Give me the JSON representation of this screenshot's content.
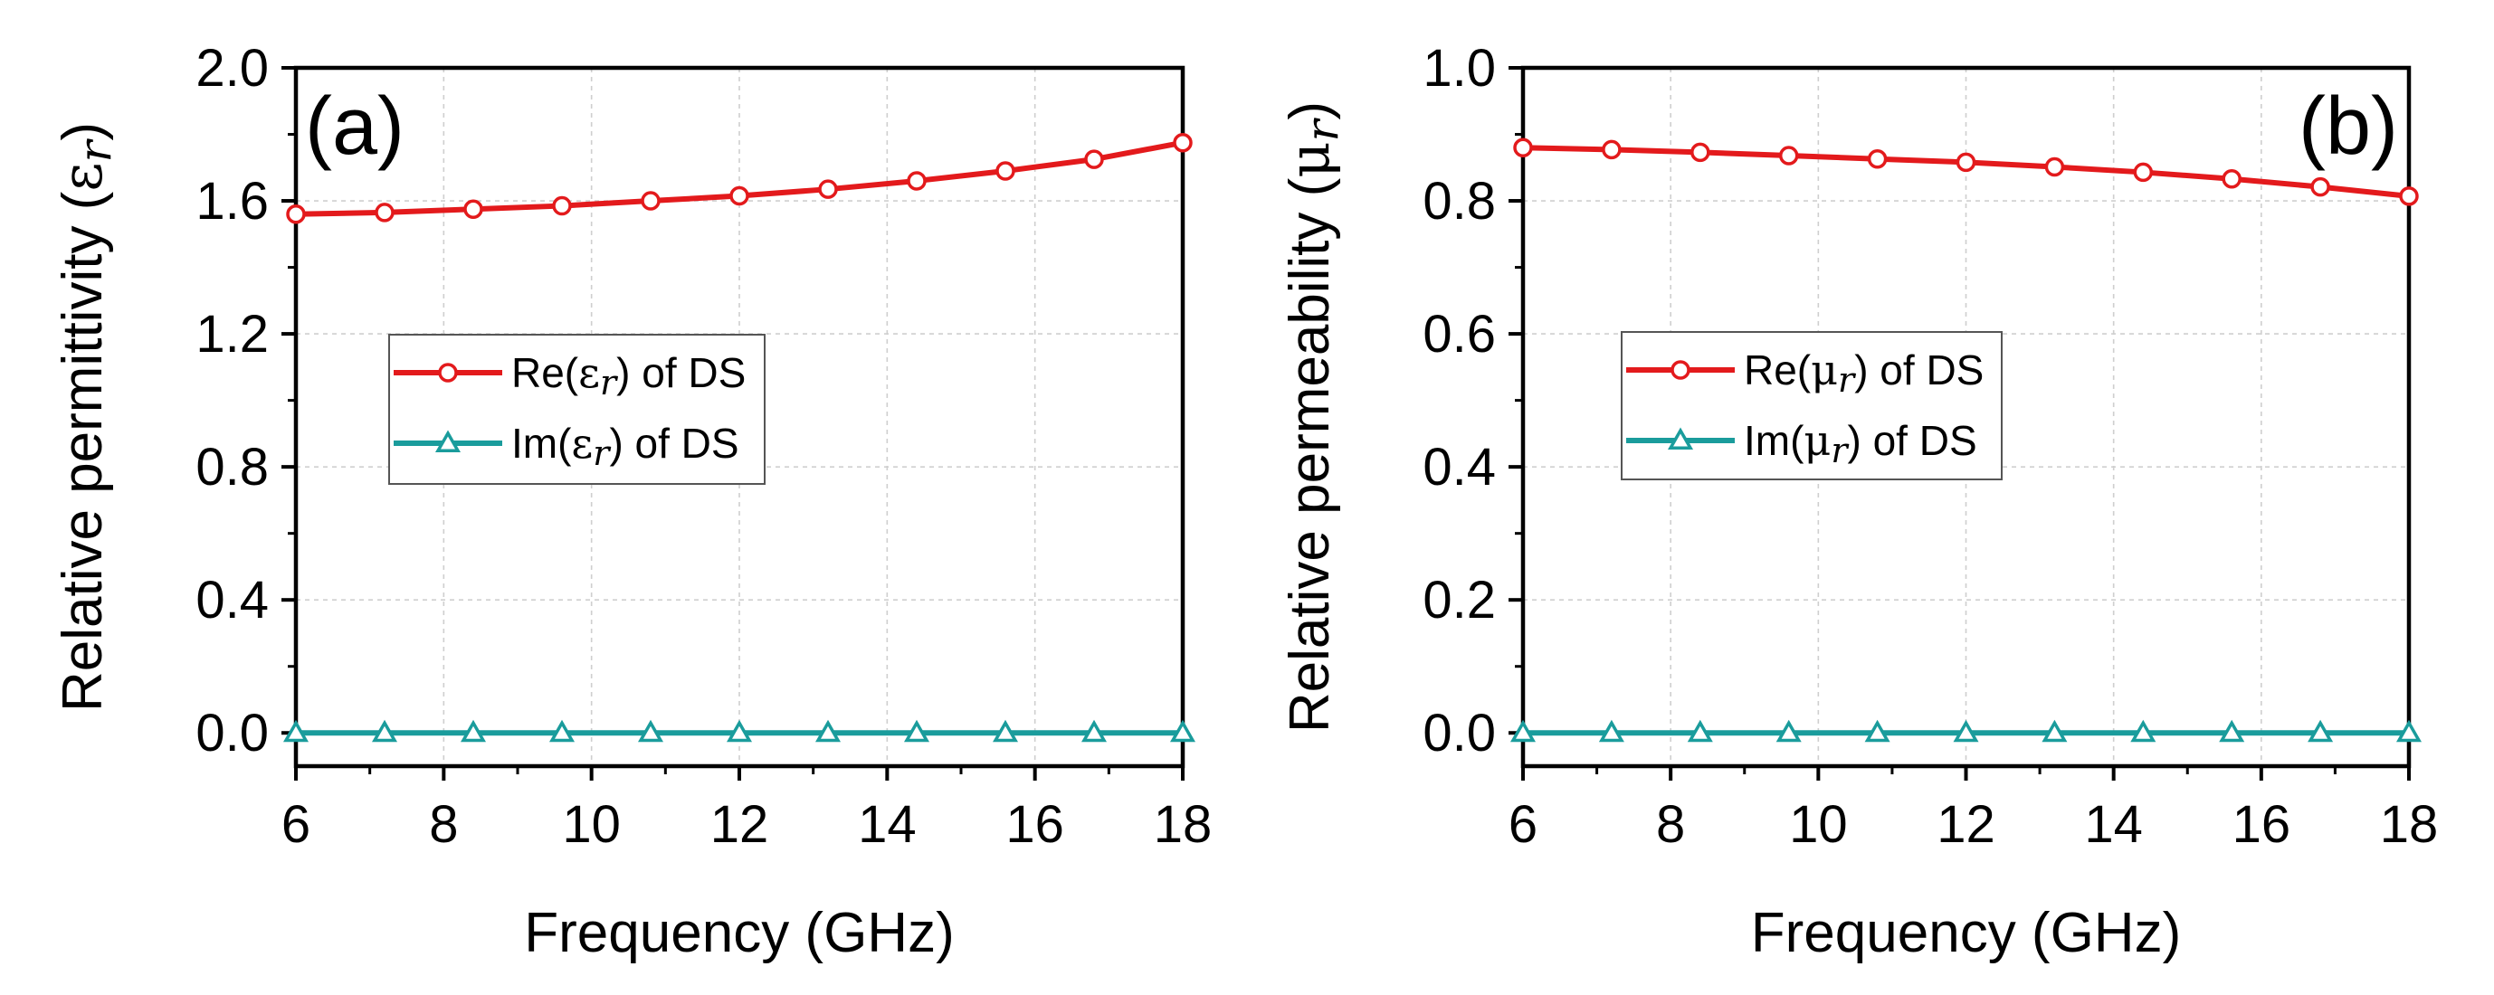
{
  "chart_data": [
    {
      "type": "line",
      "panel_label": "(a)",
      "xlabel": "Frequency (GHz)",
      "ylabel_text": "Relative permittivity (",
      "ylabel_symbol": "ε",
      "ylabel_sub": "r",
      "ylabel_close": ")",
      "xlim": [
        6,
        18
      ],
      "ylim": [
        -0.1,
        2.0
      ],
      "xticks": [
        6,
        8,
        10,
        12,
        14,
        16,
        18
      ],
      "xtick_labels": [
        "6",
        "8",
        "10",
        "12",
        "14",
        "16",
        "18"
      ],
      "yticks": [
        0.0,
        0.4,
        0.8,
        1.2,
        1.6,
        2.0
      ],
      "ytick_labels": [
        "0.0",
        "0.4",
        "0.8",
        "1.2",
        "1.6",
        "2.0"
      ],
      "grid": true,
      "legend_position": "center-left",
      "x": [
        6,
        7.2,
        8.4,
        9.6,
        10.8,
        12,
        13.2,
        14.4,
        15.6,
        16.8,
        18
      ],
      "series": [
        {
          "name": "Re(εr) of DS",
          "legend_prefix": "Re(",
          "legend_symbol": "ε",
          "legend_sub": "r",
          "legend_suffix": ") of DS",
          "marker": "circle",
          "color": "#e31a1c",
          "values": [
            1.56,
            1.565,
            1.575,
            1.585,
            1.6,
            1.615,
            1.635,
            1.66,
            1.69,
            1.725,
            1.775
          ]
        },
        {
          "name": "Im(εr) of DS",
          "legend_prefix": "Im(",
          "legend_symbol": "ε",
          "legend_sub": "r",
          "legend_suffix": ") of DS",
          "marker": "triangle",
          "color": "#1a9c9c",
          "values": [
            0,
            0,
            0,
            0,
            0,
            0,
            0,
            0,
            0,
            0,
            0
          ]
        }
      ]
    },
    {
      "type": "line",
      "panel_label": "(b)",
      "xlabel": "Frequency (GHz)",
      "ylabel_text": "Relative permeability (",
      "ylabel_symbol": "μ",
      "ylabel_sub": "r",
      "ylabel_close": ")",
      "xlim": [
        6,
        18
      ],
      "ylim": [
        -0.05,
        1.0
      ],
      "xticks": [
        6,
        8,
        10,
        12,
        14,
        16,
        18
      ],
      "xtick_labels": [
        "6",
        "8",
        "10",
        "12",
        "14",
        "16",
        "18"
      ],
      "yticks": [
        0.0,
        0.2,
        0.4,
        0.6,
        0.8,
        1.0
      ],
      "ytick_labels": [
        "0.0",
        "0.2",
        "0.4",
        "0.6",
        "0.8",
        "1.0"
      ],
      "grid": true,
      "legend_position": "center-left",
      "x": [
        6,
        7.2,
        8.4,
        9.6,
        10.8,
        12,
        13.2,
        14.4,
        15.6,
        16.8,
        18
      ],
      "series": [
        {
          "name": "Re(μr) of DS",
          "legend_prefix": "Re(",
          "legend_symbol": "μ",
          "legend_sub": "r",
          "legend_suffix": ") of DS",
          "marker": "circle",
          "color": "#e31a1c",
          "values": [
            0.88,
            0.877,
            0.873,
            0.868,
            0.863,
            0.858,
            0.851,
            0.843,
            0.833,
            0.821,
            0.807
          ]
        },
        {
          "name": "Im(μr) of DS",
          "legend_prefix": "Im(",
          "legend_symbol": "μ",
          "legend_sub": "r",
          "legend_suffix": ") of DS",
          "marker": "triangle",
          "color": "#1a9c9c",
          "values": [
            0,
            0,
            0,
            0,
            0,
            0,
            0,
            0,
            0,
            0,
            0
          ]
        }
      ]
    }
  ]
}
